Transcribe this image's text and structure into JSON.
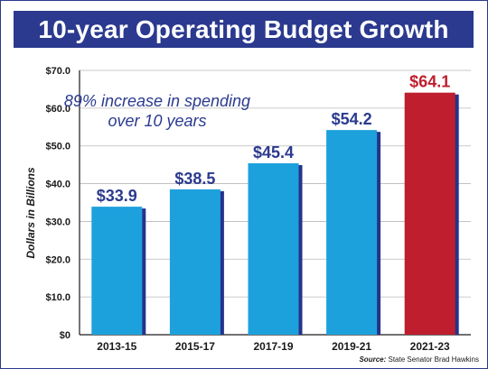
{
  "title": "10-year Operating Budget Growth",
  "annotation": [
    "89% increase in spending",
    "over 10 years"
  ],
  "source_label": "Source:",
  "source_text": "State Senator Brad Hawkins",
  "colors": {
    "banner": "#2b3a8f",
    "bar": "#1da1dd",
    "highlight_bar": "#be1e2d",
    "shadow": "#26338a",
    "value_label": "#2b3a8f",
    "highlight_value_label": "#be1e2d",
    "grid": "#b9b9b9"
  },
  "chart_data": {
    "type": "bar",
    "title": "10-year Operating Budget Growth",
    "xlabel": "",
    "ylabel": "Dollars in Billions",
    "categories": [
      "2013-15",
      "2015-17",
      "2017-19",
      "2019-21",
      "2021-23"
    ],
    "values": [
      33.9,
      38.5,
      45.4,
      54.2,
      64.1
    ],
    "value_labels": [
      "$33.9",
      "$38.5",
      "$45.4",
      "$54.2",
      "$64.1"
    ],
    "highlight_index": 4,
    "ylim": [
      0,
      70
    ],
    "yticks": [
      0,
      10,
      20,
      30,
      40,
      50,
      60,
      70
    ],
    "ytick_labels": [
      "$0",
      "$10.0",
      "$20.0",
      "$30.0",
      "$40.0",
      "$50.0",
      "$60.0",
      "$70.0"
    ],
    "grid": true,
    "legend": "none"
  }
}
